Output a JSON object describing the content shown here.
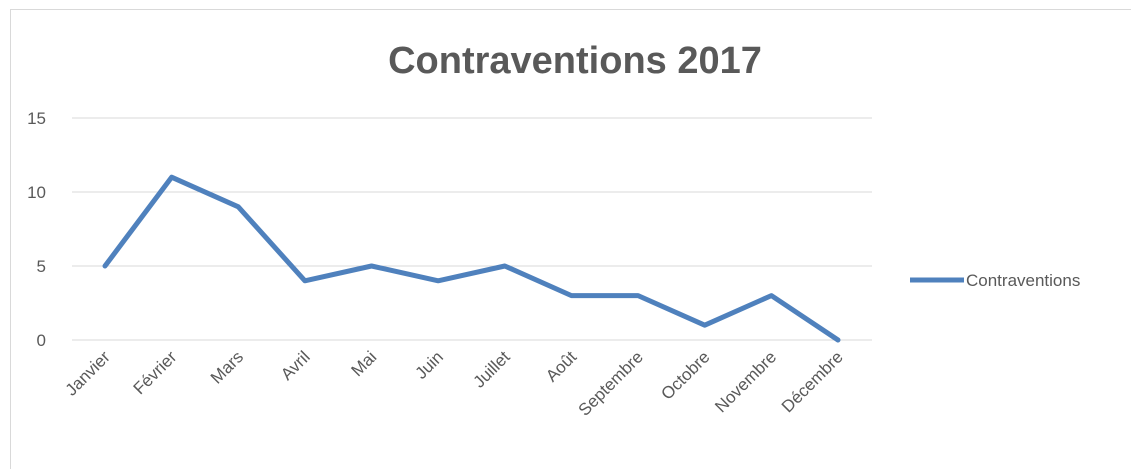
{
  "chart_data": {
    "type": "line",
    "title": "Contraventions 2017",
    "xlabel": "",
    "ylabel": "",
    "categories": [
      "Janvier",
      "Février",
      "Mars",
      "Avril",
      "Mai",
      "Juin",
      "Juillet",
      "Août",
      "Septembre",
      "Octobre",
      "Novembre",
      "Décembre"
    ],
    "series": [
      {
        "name": "Contraventions",
        "color": "#4f81bd",
        "values": [
          5,
          11,
          9,
          4,
          5,
          4,
          5,
          3,
          3,
          1,
          3,
          0
        ]
      }
    ],
    "ylim": [
      0,
      15
    ],
    "yticks": [
      0,
      5,
      10,
      15
    ],
    "grid": true,
    "legend": "right"
  }
}
